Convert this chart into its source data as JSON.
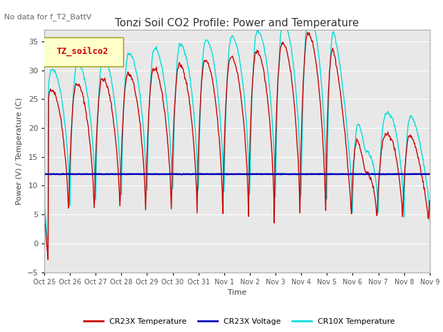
{
  "title": "Tonzi Soil CO2 Profile: Power and Temperature",
  "subtitle": "No data for f_T2_BattV",
  "ylabel": "Power (V) / Temperature (C)",
  "xlabel": "Time",
  "ylim": [
    -5,
    37
  ],
  "yticks": [
    -5,
    0,
    5,
    10,
    15,
    20,
    25,
    30,
    35
  ],
  "legend_box_label": "TZ_soilco2",
  "background_color": "#ffffff",
  "plot_bg_color": "#e8e8e8",
  "x_tick_labels": [
    "Oct 25",
    "Oct 26",
    "Oct 27",
    "Oct 28",
    "Oct 29",
    "Oct 30",
    "Oct 31",
    "Nov 1",
    "Nov 2",
    "Nov 3",
    "Nov 4",
    "Nov 5",
    "Nov 6",
    "Nov 7",
    "Nov 8",
    "Nov 9"
  ],
  "series": [
    {
      "name": "CR23X Temperature",
      "color": "#cc0000",
      "lw": 1.0
    },
    {
      "name": "CR23X Voltage",
      "color": "#0000bb",
      "lw": 1.8
    },
    {
      "name": "CR10X Temperature",
      "color": "#00dddd",
      "lw": 1.0
    }
  ],
  "voltage_level": 12.0,
  "figsize": [
    6.4,
    4.8
  ],
  "dpi": 100
}
